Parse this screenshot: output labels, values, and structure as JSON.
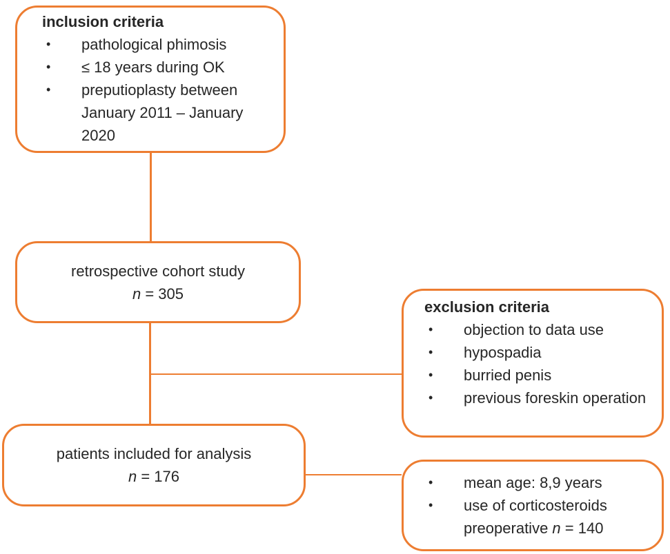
{
  "colors": {
    "accent": "#ED7D31",
    "text": "#262626",
    "background": "#FFFFFF"
  },
  "glyphs": {
    "bullet": "•"
  },
  "flowchart": {
    "inclusion_box": {
      "title": "inclusion criteria",
      "bullets": [
        "pathological phimosis",
        "≤ 18 years during OK",
        "preputioplasty between January 2011 – January 2020"
      ]
    },
    "cohort_box": {
      "label": "retrospective cohort study",
      "n_italic": "n",
      "n_rest": " = 305"
    },
    "exclusion_box": {
      "title": "exclusion criteria",
      "bullets": [
        "objection to data use",
        "hypospadia",
        "burried penis",
        "previous foreskin operation"
      ]
    },
    "analysis_box": {
      "label": "patients included for analysis",
      "n_italic": "n",
      "n_rest": " = 176"
    },
    "details_box": {
      "bullet1": "mean age: 8,9 years",
      "bullet2_pre": "use of corticosteroids preoperative ",
      "bullet2_italic": "n",
      "bullet2_post": " = 140"
    }
  }
}
